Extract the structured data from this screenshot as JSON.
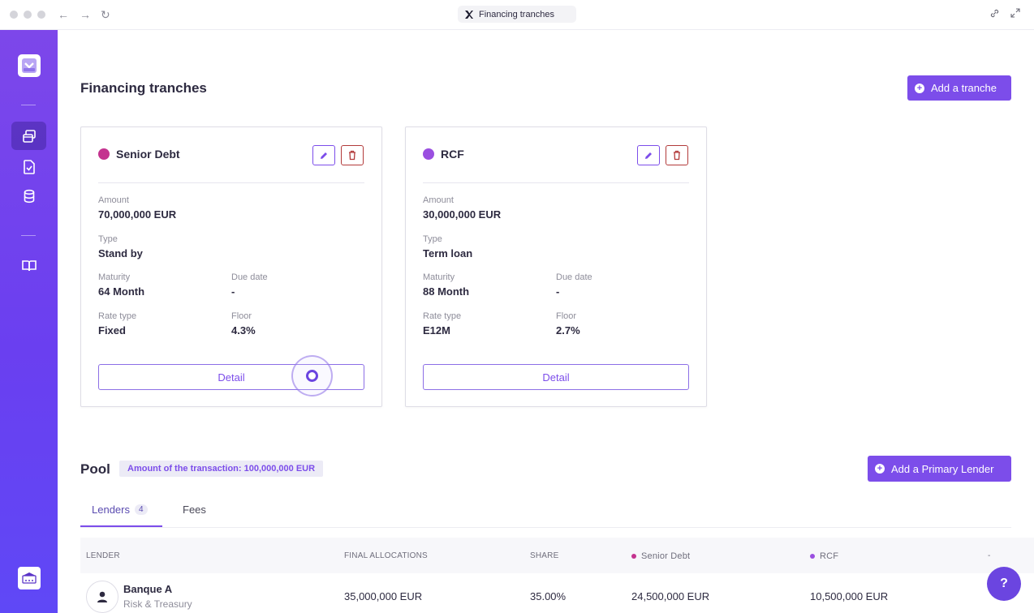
{
  "browser": {
    "tab_title": "Financing tranches"
  },
  "colors": {
    "accent": "#7c4dea",
    "senior_debt": "#c4338f",
    "rcf": "#9a4fe0",
    "delete": "#b23a3a"
  },
  "header": {
    "title": "Financing tranches",
    "add_tranche_label": "Add a tranche"
  },
  "tranches": [
    {
      "name": "Senior Debt",
      "color": "#c4338f",
      "amount_label": "Amount",
      "amount": "70,000,000 EUR",
      "type_label": "Type",
      "type": "Stand by",
      "maturity_label": "Maturity",
      "maturity": "64 Month",
      "due_date_label": "Due date",
      "due_date": "-",
      "rate_type_label": "Rate type",
      "rate_type": "Fixed",
      "floor_label": "Floor",
      "floor": "4.3%",
      "detail_label": "Detail"
    },
    {
      "name": "RCF",
      "color": "#9a4fe0",
      "amount_label": "Amount",
      "amount": "30,000,000 EUR",
      "type_label": "Type",
      "type": "Term loan",
      "maturity_label": "Maturity",
      "maturity": "88 Month",
      "due_date_label": "Due date",
      "due_date": "-",
      "rate_type_label": "Rate type",
      "rate_type": "E12M",
      "floor_label": "Floor",
      "floor": "2.7%",
      "detail_label": "Detail"
    }
  ],
  "pool": {
    "title": "Pool",
    "badge": "Amount of the transaction: 100,000,000 EUR",
    "add_lender_label": "Add a Primary Lender",
    "tabs": [
      {
        "label": "Lenders",
        "count": "4"
      },
      {
        "label": "Fees"
      }
    ],
    "columns": {
      "lender": "LENDER",
      "final_allocations": "FINAL ALLOCATIONS",
      "share": "SHARE",
      "senior_debt": "Senior Debt",
      "rcf": "RCF",
      "extra": "-"
    },
    "rows": [
      {
        "name": "Banque A",
        "department": "Risk & Treasury",
        "final_allocations": "35,000,000 EUR",
        "share": "35.00%",
        "senior_debt": "24,500,000 EUR",
        "rcf": "10,500,000 EUR"
      }
    ]
  },
  "help_label": "?"
}
